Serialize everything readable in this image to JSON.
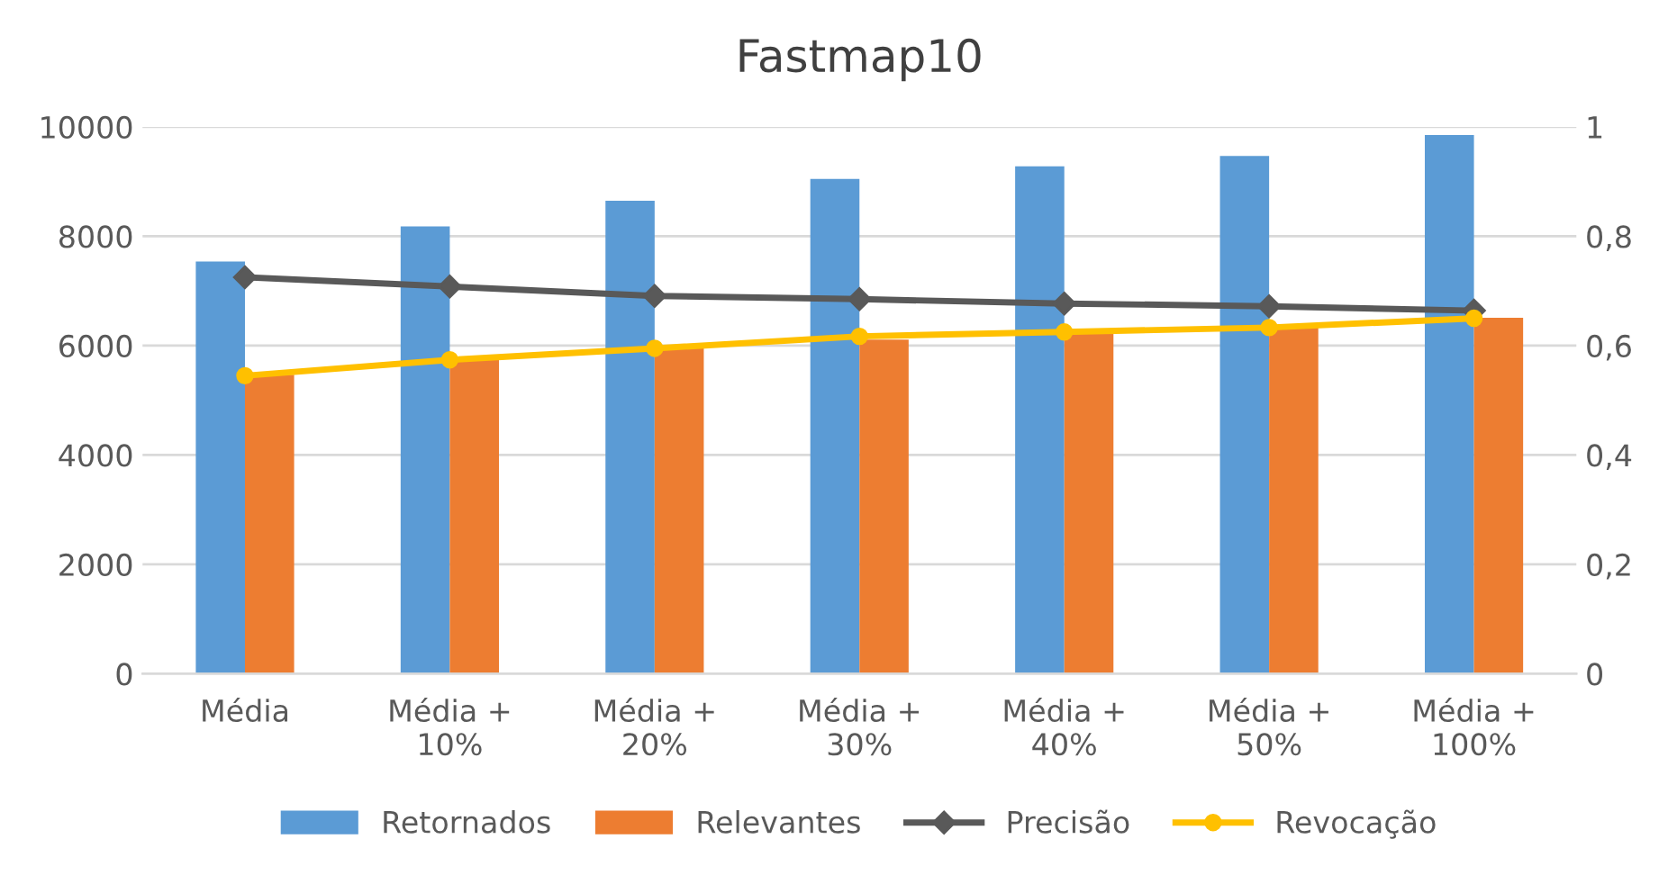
{
  "chart_data": {
    "type": "bar",
    "title": "Fastmap10",
    "categories": [
      "Média",
      "Média +\n10%",
      "Média +\n20%",
      "Média +\n30%",
      "Média +\n40%",
      "Média +\n50%",
      "Média +\n100%"
    ],
    "series": [
      {
        "name": "Retornados",
        "color": "#5b9bd5",
        "values": [
          7540,
          8180,
          8650,
          9050,
          9280,
          9470,
          9850
        ]
      },
      {
        "name": "Relevantes",
        "color": "#ed7d31",
        "values": [
          5470,
          5750,
          5970,
          6110,
          6220,
          6330,
          6510
        ]
      },
      {
        "name": "Precisão",
        "type": "line",
        "axis": "y2",
        "marker": "diamond",
        "color": "#595959",
        "values": [
          0.725,
          0.708,
          0.691,
          0.685,
          0.677,
          0.672,
          0.664
        ]
      },
      {
        "name": "Revocação",
        "type": "line",
        "axis": "y2",
        "marker": "circle",
        "color": "#ffc000",
        "values": [
          0.545,
          0.574,
          0.595,
          0.617,
          0.625,
          0.633,
          0.65
        ]
      }
    ],
    "ylim": [
      0,
      10000
    ],
    "yticks": [
      0,
      2000,
      4000,
      6000,
      8000,
      10000
    ],
    "y2lim": [
      0,
      1
    ],
    "y2ticks": [
      {
        "value": 0,
        "label": "0"
      },
      {
        "value": 0.2,
        "label": "0,2"
      },
      {
        "value": 0.4,
        "label": "0,4"
      },
      {
        "value": 0.6,
        "label": "0,6"
      },
      {
        "value": 0.8,
        "label": "0,8"
      },
      {
        "value": 1,
        "label": "1"
      }
    ],
    "grid": "y",
    "legend": "bottom"
  }
}
